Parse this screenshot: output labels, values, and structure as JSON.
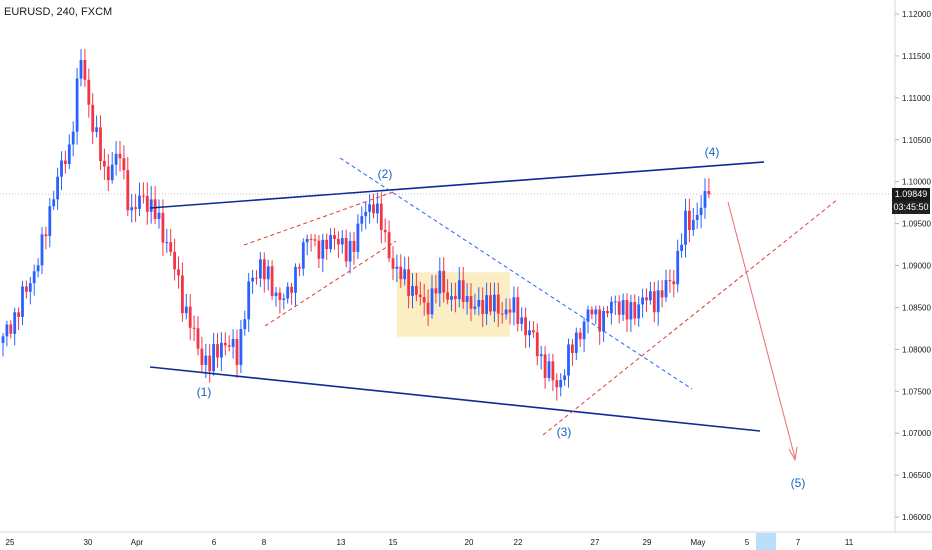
{
  "header": {
    "symbol": "EURUSD, 240, FXCM"
  },
  "price_axis": {
    "last_price": "1.09849",
    "countdown": "03:45:50"
  },
  "colors": {
    "up": "#2962ff",
    "down": "#f23645",
    "channel": "#0d2a96",
    "dashed_red": "#e53935",
    "dashed_blue": "#2962ff",
    "box": "#fbe8b0",
    "wave_label": "#1565c0",
    "arrow": "#ef6b73"
  },
  "chart_data": {
    "type": "candlestick",
    "symbol": "EURUSD",
    "timeframe": "240",
    "source": "FXCM",
    "y_ticks": [
      "1.12000",
      "1.11500",
      "1.11000",
      "1.10500",
      "1.10000",
      "1.09500",
      "1.09000",
      "1.08500",
      "1.08000",
      "1.07500",
      "1.07000",
      "1.06500",
      "1.06000"
    ],
    "ylim": [
      1.0585,
      1.122
    ],
    "x_ticks": [
      "25",
      "30",
      "Apr",
      "6",
      "8",
      "13",
      "15",
      "20",
      "22",
      "27",
      "29",
      "May",
      "5",
      "7",
      "11"
    ],
    "wave_labels": [
      "(1)",
      "(2)",
      "(3)",
      "(4)",
      "(5)"
    ],
    "waypoints": [
      [
        0,
        1.081
      ],
      [
        6,
        1.087
      ],
      [
        10,
        1.092
      ],
      [
        13,
        1.099
      ],
      [
        17,
        1.104
      ],
      [
        20,
        1.1145
      ],
      [
        23,
        1.107
      ],
      [
        26,
        1.101
      ],
      [
        30,
        1.103
      ],
      [
        33,
        1.096
      ],
      [
        36,
        1.0985
      ],
      [
        39,
        1.096
      ],
      [
        42,
        1.093
      ],
      [
        46,
        1.086
      ],
      [
        50,
        1.08
      ],
      [
        53,
        1.078
      ],
      [
        56,
        1.081
      ],
      [
        60,
        1.0795
      ],
      [
        63,
        1.087
      ],
      [
        66,
        1.0905
      ],
      [
        69,
        1.087
      ],
      [
        73,
        1.086
      ],
      [
        76,
        1.091
      ],
      [
        79,
        1.0935
      ],
      [
        82,
        1.0915
      ],
      [
        85,
        1.094
      ],
      [
        88,
        1.091
      ],
      [
        92,
        1.0955
      ],
      [
        95,
        1.0978
      ],
      [
        98,
        1.093
      ],
      [
        101,
        1.089
      ],
      [
        104,
        1.088
      ],
      [
        108,
        1.085
      ],
      [
        112,
        1.088
      ],
      [
        115,
        1.086
      ],
      [
        118,
        1.087
      ],
      [
        121,
        1.0845
      ],
      [
        124,
        1.086
      ],
      [
        127,
        1.0845
      ],
      [
        130,
        1.085
      ],
      [
        133,
        1.0835
      ],
      [
        136,
        1.081
      ],
      [
        139,
        1.078
      ],
      [
        142,
        1.0755
      ],
      [
        145,
        1.079
      ],
      [
        148,
        1.0825
      ],
      [
        151,
        1.0845
      ],
      [
        154,
        1.0835
      ],
      [
        157,
        1.086
      ],
      [
        160,
        1.084
      ],
      [
        163,
        1.0855
      ],
      [
        166,
        1.086
      ],
      [
        169,
        1.0865
      ],
      [
        172,
        1.089
      ],
      [
        175,
        1.095
      ],
      [
        178,
        1.096
      ],
      [
        181,
        1.0984
      ]
    ],
    "candle_count": 182,
    "last_close": 1.09849,
    "box": {
      "x_start": 101,
      "x_end": 130,
      "y_low": 1.0815,
      "y_high": 1.0892
    }
  }
}
